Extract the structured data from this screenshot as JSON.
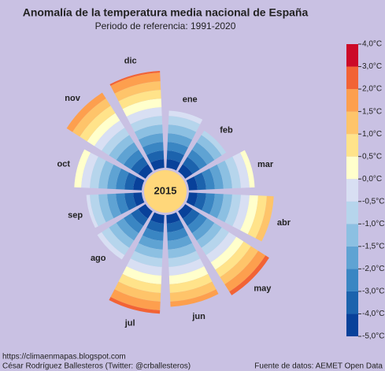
{
  "chart_data": {
    "type": "polar_bar",
    "title": "Anomalía de la temperatura media nacional de España",
    "subtitle": "Periodo de referencia: 1991-2020",
    "center_label": "2015",
    "center_color": "#ffd77a",
    "categories": [
      "ene",
      "feb",
      "mar",
      "abr",
      "may",
      "jun",
      "jul",
      "ago",
      "sep",
      "oct",
      "nov",
      "dic"
    ],
    "values": [
      -0.2,
      -0.7,
      0.3,
      1.4,
      2.5,
      1.8,
      2.4,
      -0.2,
      -0.3,
      0.4,
      1.9,
      2.2
    ],
    "colorbar_ticks": [
      {
        "value": -5,
        "label": "-5,0°C"
      },
      {
        "value": -4,
        "label": "-4,0°C"
      },
      {
        "value": -3,
        "label": "-3,0°C"
      },
      {
        "value": -2,
        "label": "-2,0°C"
      },
      {
        "value": -1.5,
        "label": "-1,5°C"
      },
      {
        "value": -1,
        "label": "-1,0°C"
      },
      {
        "value": -0.5,
        "label": "-0,5°C"
      },
      {
        "value": 0,
        "label": "0,0°C"
      },
      {
        "value": 0.5,
        "label": "0,5°C"
      },
      {
        "value": 1,
        "label": "1,0°C"
      },
      {
        "value": 1.5,
        "label": "1,5°C"
      },
      {
        "value": 2,
        "label": "2,0°C"
      },
      {
        "value": 3,
        "label": "3,0°C"
      },
      {
        "value": 4,
        "label": "4,0°C"
      }
    ],
    "colors": [
      "#08419a",
      "#1c63ad",
      "#3a86c3",
      "#5fa3d3",
      "#8cc0e2",
      "#b6d5ec",
      "#d8dff3",
      "#ffffcc",
      "#ffe38a",
      "#fec46a",
      "#fd9f4e",
      "#f26335",
      "#cc0a28"
    ],
    "source_left_1": "https://climaenmapas.blogspot.com",
    "source_left_2": "César Rodríguez Ballesteros (Twitter: @crballesteros)",
    "source_right": "Fuente de datos: AEMET Open Data"
  }
}
